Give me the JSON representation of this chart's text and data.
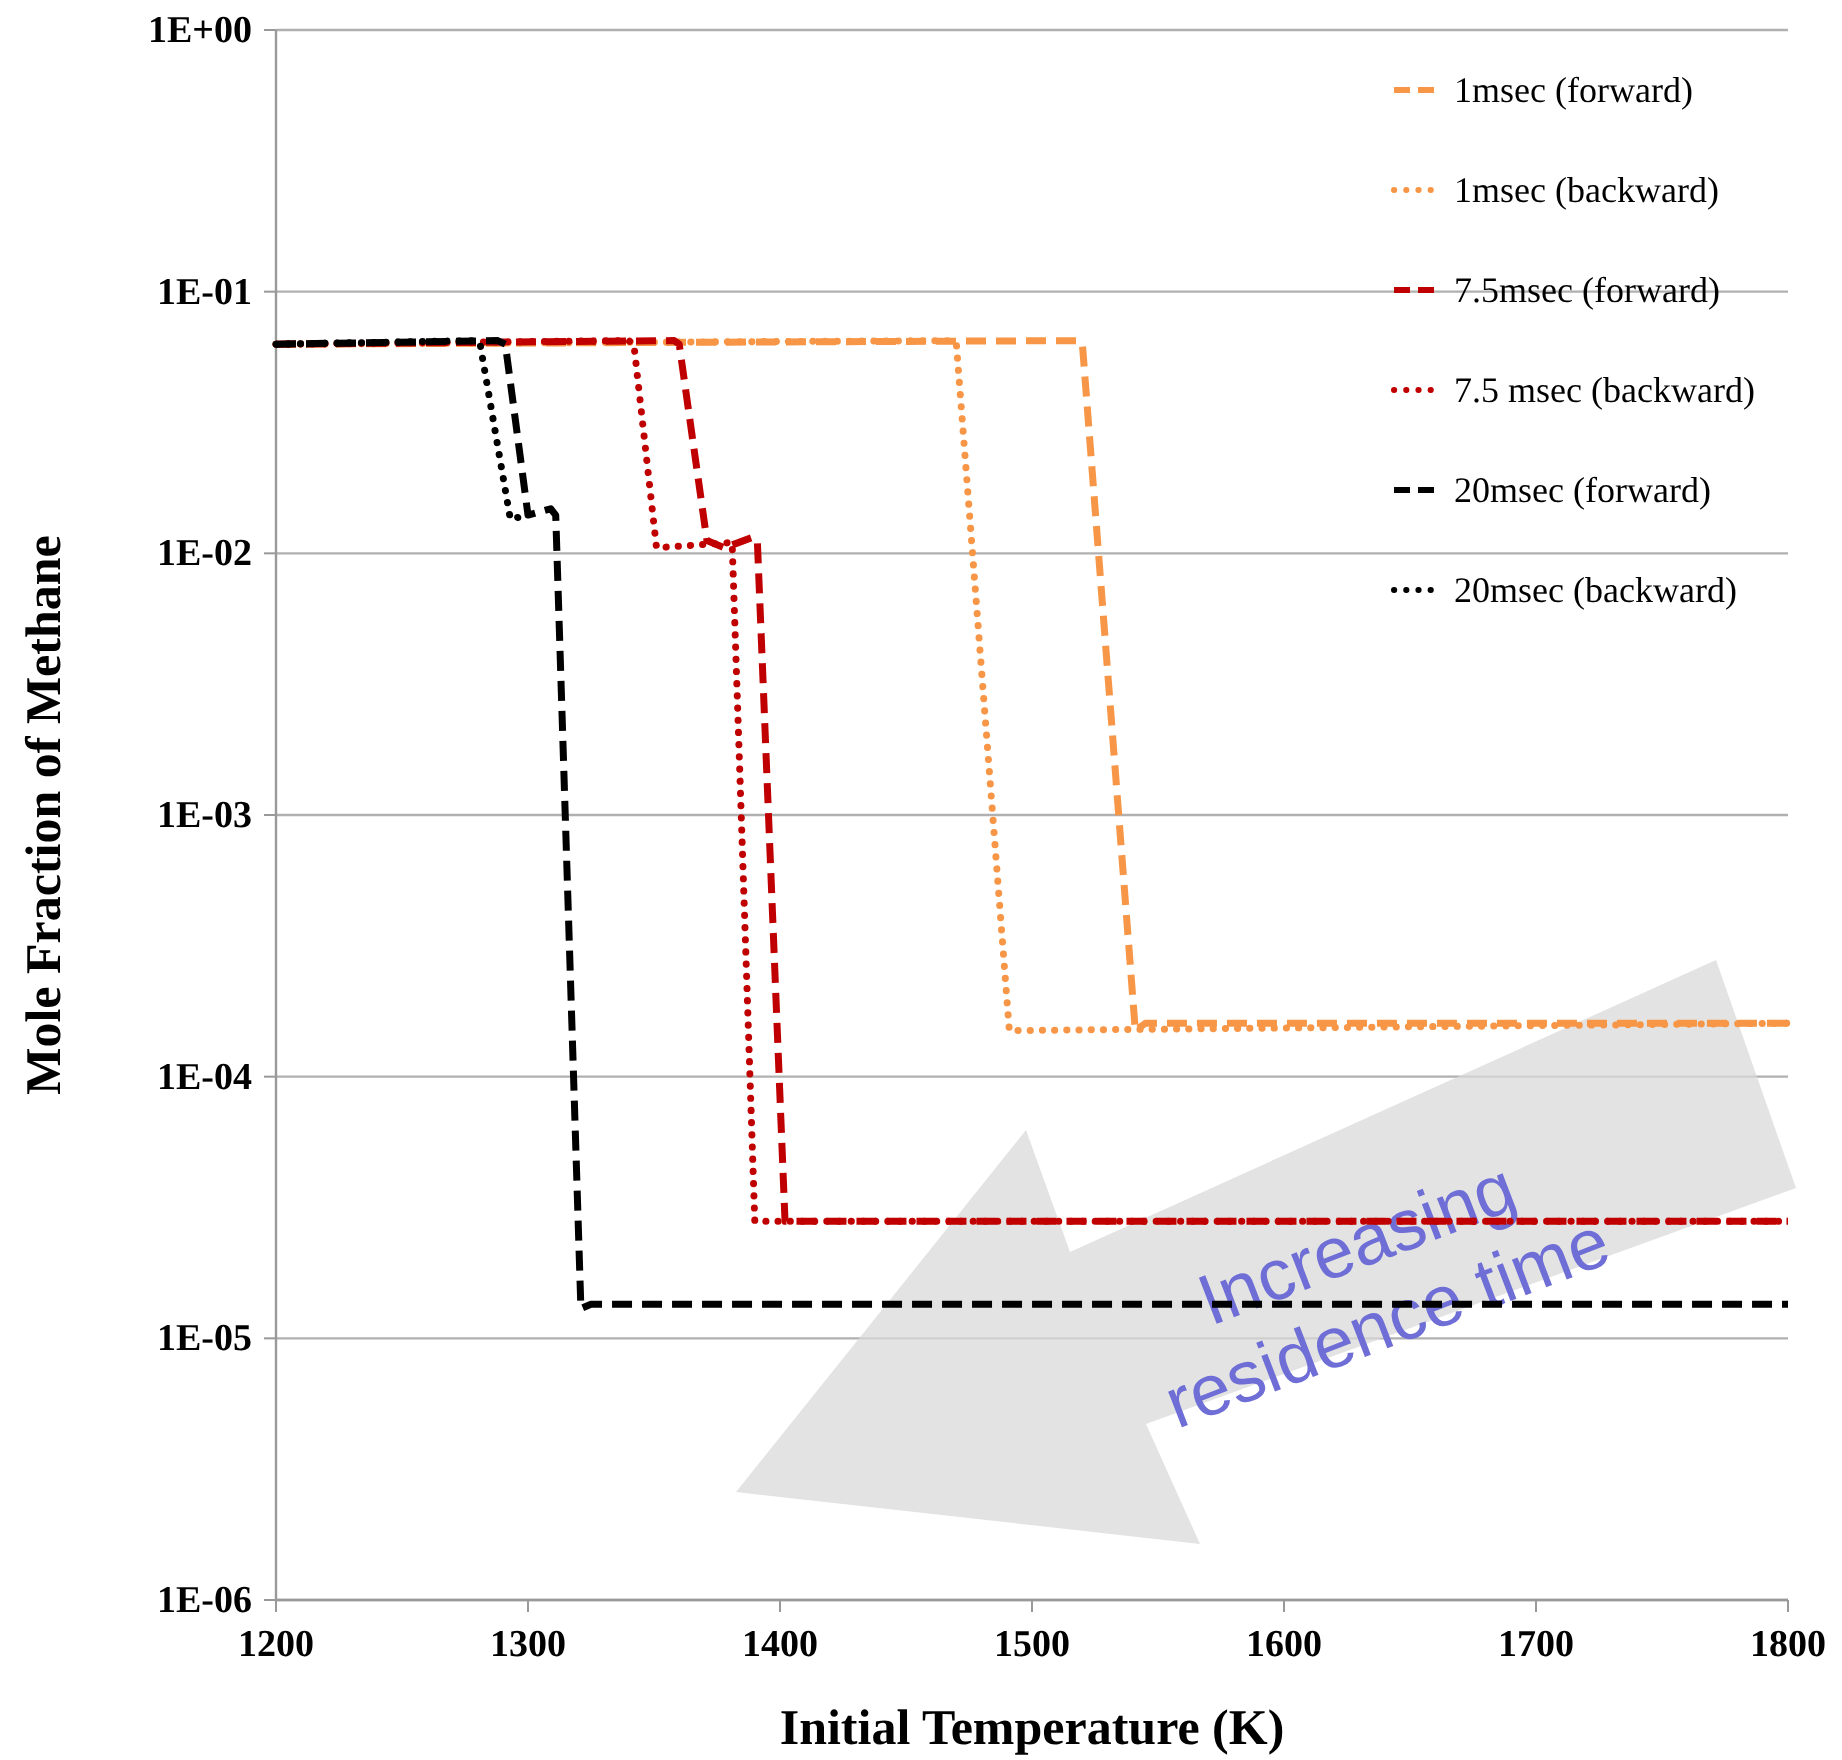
{
  "chart_data": {
    "type": "line",
    "xlabel": "Initial Temperature (K)",
    "ylabel": "Mole Fraction of Methane",
    "log": "y",
    "xlim": [
      1200,
      1800
    ],
    "xticks": [
      1200,
      1300,
      1400,
      1500,
      1600,
      1700,
      1800
    ],
    "ylim": [
      1e-06,
      1
    ],
    "yticks": [
      {
        "value": 1,
        "label": "1E+00"
      },
      {
        "value": 0.1,
        "label": "1E-01"
      },
      {
        "value": 0.01,
        "label": "1E-02"
      },
      {
        "value": 0.001,
        "label": "1E-03"
      },
      {
        "value": 0.0001,
        "label": "1E-04"
      },
      {
        "value": 1e-05,
        "label": "1E-05"
      },
      {
        "value": 1e-06,
        "label": "1E-06"
      }
    ],
    "grid": "y",
    "legend": "top right",
    "annotations": [
      "Increasing residence time"
    ],
    "series": [
      {
        "name": "1msec (forward)",
        "color": "#f79646",
        "line_style": "dashed",
        "x": [
          1200,
          1518,
          1520,
          1541,
          1545,
          1800
        ],
        "values": [
          0.063,
          0.065,
          0.063,
          0.00015,
          0.00016,
          0.00016
        ]
      },
      {
        "name": "1msec (backward)",
        "color": "#f79646",
        "line_style": "dotted",
        "x": [
          1200,
          1468,
          1470,
          1491,
          1800
        ],
        "values": [
          0.063,
          0.065,
          0.063,
          0.00015,
          0.00016
        ]
      },
      {
        "name": "7.5msec (forward)",
        "color": "#c00000",
        "line_style": "dashed",
        "x": [
          1200,
          1358,
          1360,
          1371,
          1378,
          1389,
          1391,
          1402,
          1800
        ],
        "values": [
          0.063,
          0.065,
          0.063,
          0.0112,
          0.0105,
          0.0115,
          0.0112,
          2.8e-05,
          2.8e-05
        ]
      },
      {
        "name": "7.5 msec (backward)",
        "color": "#c00000",
        "line_style": "dotted",
        "x": [
          1200,
          1340,
          1342,
          1351,
          1381,
          1390,
          1800
        ],
        "values": [
          0.063,
          0.065,
          0.063,
          0.0105,
          0.011,
          2.8e-05,
          2.8e-05
        ]
      },
      {
        "name": "20msec (forward)",
        "color": "#000000",
        "line_style": "dashed",
        "x": [
          1200,
          1288,
          1291,
          1300,
          1309,
          1311,
          1321,
          1325,
          1800
        ],
        "values": [
          0.063,
          0.065,
          0.063,
          0.014,
          0.0148,
          0.014,
          1.3e-05,
          1.35e-05,
          1.35e-05
        ]
      },
      {
        "name": "20msec (backward)",
        "color": "#000000",
        "line_style": "dotted",
        "x": [
          1200,
          1279,
          1281,
          1293,
          1300
        ],
        "values": [
          0.063,
          0.065,
          0.063,
          0.0135,
          0.014
        ]
      }
    ]
  }
}
